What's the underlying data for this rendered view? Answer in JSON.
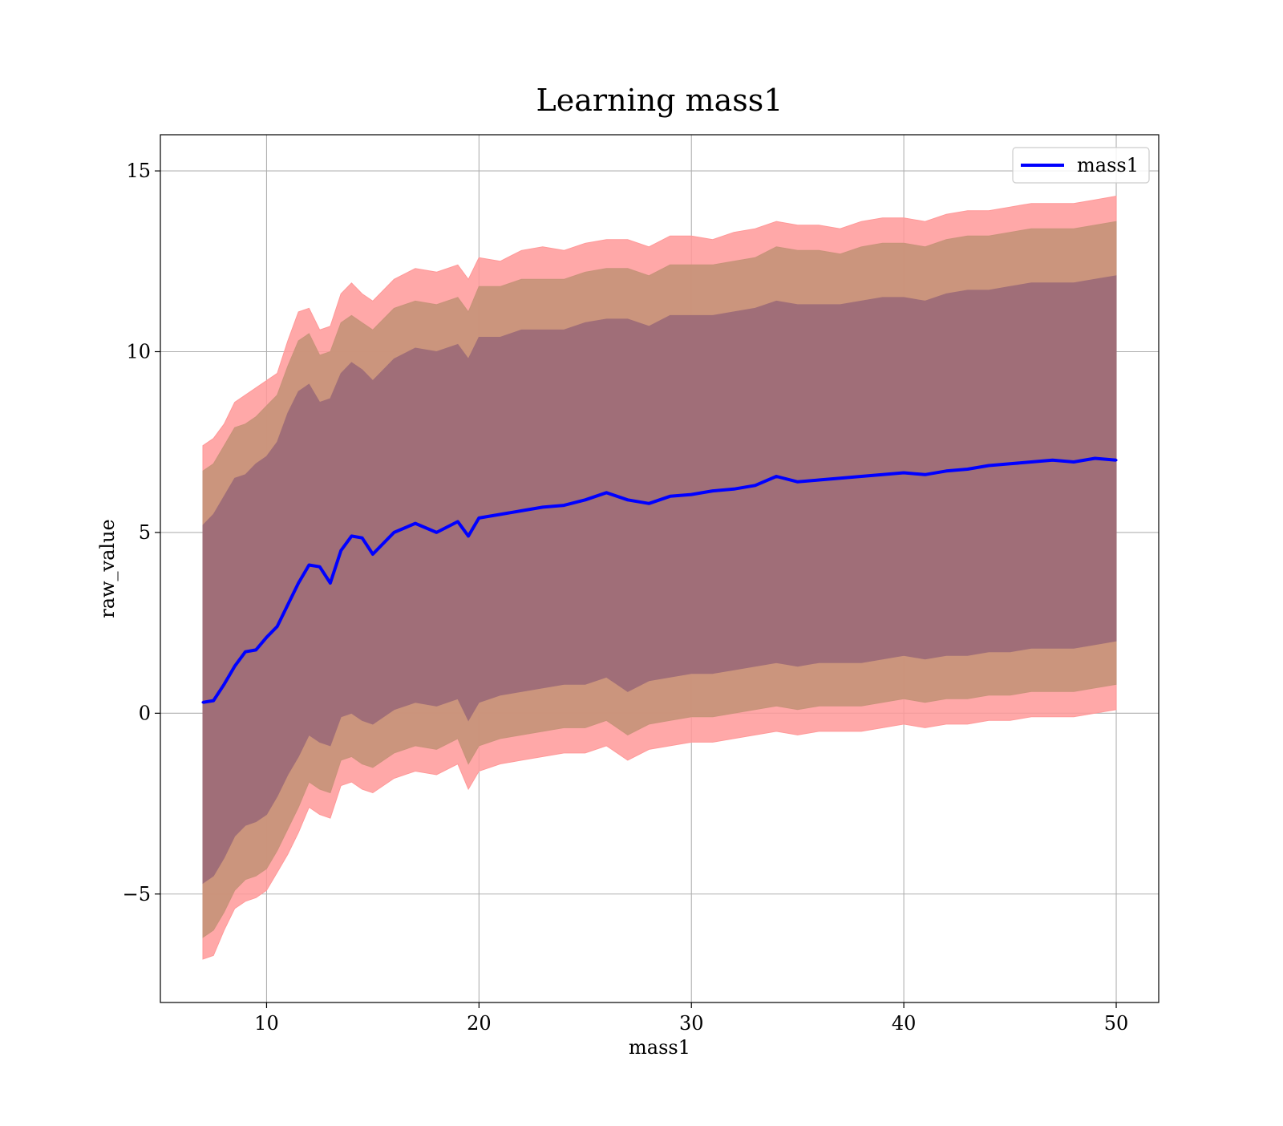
{
  "chart_data": {
    "type": "area",
    "title": "Learning mass1",
    "xlabel": "mass1",
    "ylabel": "raw_value",
    "xlim": [
      5,
      52
    ],
    "ylim": [
      -8,
      16
    ],
    "xticks": [
      10,
      20,
      30,
      40,
      50
    ],
    "yticks": [
      -5,
      0,
      5,
      10,
      15
    ],
    "xtick_labels": [
      "10",
      "20",
      "30",
      "40",
      "50"
    ],
    "ytick_labels": [
      "−5",
      "0",
      "5",
      "10",
      "15"
    ],
    "grid": true,
    "legend": {
      "position": "top-right",
      "entries": [
        "mass1"
      ]
    },
    "colors": {
      "line": "#0000ff",
      "outer_band": "#ff9999",
      "middle_band": "#c8937a",
      "inner_band": "#a06e78",
      "grid": "#b0b0b0"
    },
    "x": [
      7,
      7.5,
      8,
      8.5,
      9,
      9.5,
      10,
      10.5,
      11,
      11.5,
      12,
      12.5,
      13,
      13.5,
      14,
      14.5,
      15,
      16,
      17,
      18,
      19,
      19.5,
      20,
      21,
      22,
      23,
      24,
      25,
      26,
      27,
      28,
      29,
      30,
      31,
      32,
      33,
      34,
      35,
      36,
      37,
      38,
      39,
      40,
      41,
      42,
      43,
      44,
      45,
      46,
      47,
      48,
      49,
      50
    ],
    "series": [
      {
        "name": "mass1",
        "values": [
          0.3,
          0.35,
          0.8,
          1.3,
          1.7,
          1.75,
          2.1,
          2.4,
          3.0,
          3.6,
          4.1,
          4.05,
          3.6,
          4.5,
          4.9,
          4.85,
          4.4,
          5.0,
          5.25,
          5.0,
          5.3,
          4.9,
          5.4,
          5.5,
          5.6,
          5.7,
          5.75,
          5.9,
          6.1,
          5.9,
          5.8,
          6.0,
          6.05,
          6.15,
          6.2,
          6.3,
          6.55,
          6.4,
          6.45,
          6.5,
          6.55,
          6.6,
          6.65,
          6.6,
          6.7,
          6.75,
          6.85,
          6.9,
          6.95,
          7.0,
          6.95,
          7.05,
          7.0
        ]
      },
      {
        "name": "",
        "upper": [
          7.4,
          7.6,
          8.0,
          8.6,
          8.8,
          9.0,
          9.2,
          9.4,
          10.3,
          11.1,
          11.2,
          10.6,
          10.7,
          11.6,
          11.9,
          11.6,
          11.4,
          12.0,
          12.3,
          12.2,
          12.4,
          12.0,
          12.6,
          12.5,
          12.8,
          12.9,
          12.8,
          13.0,
          13.1,
          13.1,
          12.9,
          13.2,
          13.2,
          13.1,
          13.3,
          13.4,
          13.6,
          13.5,
          13.5,
          13.4,
          13.6,
          13.7,
          13.7,
          13.6,
          13.8,
          13.9,
          13.9,
          14.0,
          14.1,
          14.1,
          14.1,
          14.2,
          14.3
        ],
        "lower": [
          -6.8,
          -6.7,
          -6.0,
          -5.4,
          -5.2,
          -5.1,
          -4.9,
          -4.4,
          -3.9,
          -3.3,
          -2.6,
          -2.8,
          -2.9,
          -2.0,
          -1.9,
          -2.1,
          -2.2,
          -1.8,
          -1.6,
          -1.7,
          -1.4,
          -2.1,
          -1.6,
          -1.4,
          -1.3,
          -1.2,
          -1.1,
          -1.1,
          -0.9,
          -1.3,
          -1.0,
          -0.9,
          -0.8,
          -0.8,
          -0.7,
          -0.6,
          -0.5,
          -0.6,
          -0.5,
          -0.5,
          -0.5,
          -0.4,
          -0.3,
          -0.4,
          -0.3,
          -0.3,
          -0.2,
          -0.2,
          -0.1,
          -0.1,
          -0.1,
          0.0,
          0.1
        ]
      },
      {
        "name": "",
        "upper": [
          6.7,
          6.9,
          7.4,
          7.9,
          8.0,
          8.2,
          8.5,
          8.8,
          9.6,
          10.3,
          10.5,
          9.9,
          10.0,
          10.8,
          11.0,
          10.8,
          10.6,
          11.2,
          11.4,
          11.3,
          11.5,
          11.1,
          11.8,
          11.8,
          12.0,
          12.0,
          12.0,
          12.2,
          12.3,
          12.3,
          12.1,
          12.4,
          12.4,
          12.4,
          12.5,
          12.6,
          12.9,
          12.8,
          12.8,
          12.7,
          12.9,
          13.0,
          13.0,
          12.9,
          13.1,
          13.2,
          13.2,
          13.3,
          13.4,
          13.4,
          13.4,
          13.5,
          13.6
        ],
        "lower": [
          -6.2,
          -6.0,
          -5.5,
          -4.9,
          -4.6,
          -4.5,
          -4.3,
          -3.8,
          -3.2,
          -2.6,
          -1.9,
          -2.1,
          -2.2,
          -1.3,
          -1.2,
          -1.4,
          -1.5,
          -1.1,
          -0.9,
          -1.0,
          -0.7,
          -1.4,
          -0.9,
          -0.7,
          -0.6,
          -0.5,
          -0.4,
          -0.4,
          -0.2,
          -0.6,
          -0.3,
          -0.2,
          -0.1,
          -0.1,
          0.0,
          0.1,
          0.2,
          0.1,
          0.2,
          0.2,
          0.2,
          0.3,
          0.4,
          0.3,
          0.4,
          0.4,
          0.5,
          0.5,
          0.6,
          0.6,
          0.6,
          0.7,
          0.8
        ]
      },
      {
        "name": "",
        "upper": [
          5.2,
          5.5,
          6.0,
          6.5,
          6.6,
          6.9,
          7.1,
          7.5,
          8.3,
          8.9,
          9.1,
          8.6,
          8.7,
          9.4,
          9.7,
          9.5,
          9.2,
          9.8,
          10.1,
          10.0,
          10.2,
          9.8,
          10.4,
          10.4,
          10.6,
          10.6,
          10.6,
          10.8,
          10.9,
          10.9,
          10.7,
          11.0,
          11.0,
          11.0,
          11.1,
          11.2,
          11.4,
          11.3,
          11.3,
          11.3,
          11.4,
          11.5,
          11.5,
          11.4,
          11.6,
          11.7,
          11.7,
          11.8,
          11.9,
          11.9,
          11.9,
          12.0,
          12.1
        ],
        "lower": [
          -4.7,
          -4.5,
          -4.0,
          -3.4,
          -3.1,
          -3.0,
          -2.8,
          -2.3,
          -1.7,
          -1.2,
          -0.6,
          -0.8,
          -0.9,
          -0.1,
          0.0,
          -0.2,
          -0.3,
          0.1,
          0.3,
          0.2,
          0.4,
          -0.2,
          0.3,
          0.5,
          0.6,
          0.7,
          0.8,
          0.8,
          1.0,
          0.6,
          0.9,
          1.0,
          1.1,
          1.1,
          1.2,
          1.3,
          1.4,
          1.3,
          1.4,
          1.4,
          1.4,
          1.5,
          1.6,
          1.5,
          1.6,
          1.6,
          1.7,
          1.7,
          1.8,
          1.8,
          1.8,
          1.9,
          2.0
        ]
      }
    ]
  }
}
